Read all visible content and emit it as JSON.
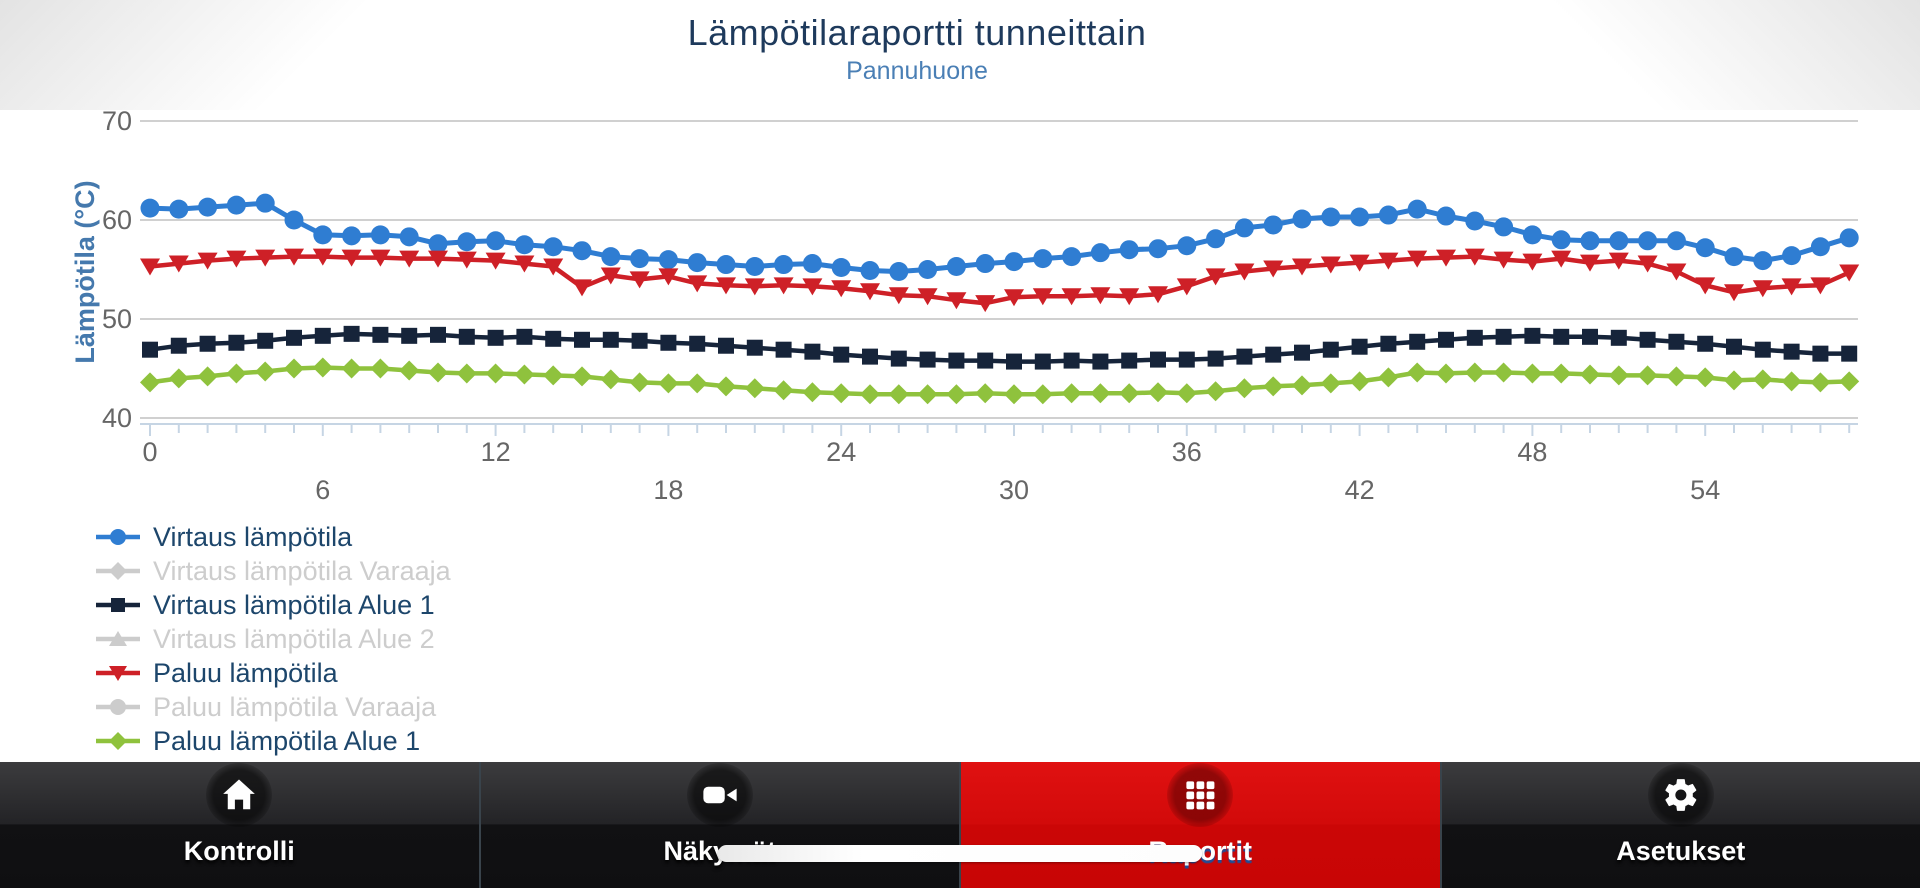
{
  "header": {
    "title": "Lämpötilaraportti tunneittain",
    "subtitle": "Pannuhuone"
  },
  "chart_data": {
    "type": "line",
    "title": "Lämpötilaraportti tunneittain",
    "subtitle": "Pannuhuone",
    "xlabel": "",
    "ylabel": "Lämpötila (°C)",
    "ylim": [
      40,
      70
    ],
    "y_ticks": [
      70,
      60,
      50,
      40
    ],
    "x_tick_labels": [
      0,
      6,
      12,
      18,
      24,
      30,
      36,
      42,
      48,
      54
    ],
    "x_range": [
      0,
      59
    ],
    "x_step_hours": 1,
    "grid": "horizontal",
    "legend_position": "bottom-left",
    "series": [
      {
        "name": "Virtaus lämpötila",
        "color": "#2f7dd2",
        "marker": "circle",
        "visible": true,
        "values": [
          61.2,
          61.1,
          61.3,
          61.5,
          61.7,
          60.0,
          58.5,
          58.4,
          58.5,
          58.3,
          57.6,
          57.8,
          57.9,
          57.5,
          57.3,
          56.9,
          56.3,
          56.1,
          56.0,
          55.7,
          55.5,
          55.3,
          55.5,
          55.6,
          55.2,
          54.9,
          54.8,
          55.0,
          55.3,
          55.6,
          55.8,
          56.1,
          56.3,
          56.7,
          57.0,
          57.1,
          57.4,
          58.1,
          59.2,
          59.5,
          60.1,
          60.3,
          60.3,
          60.5,
          61.1,
          60.4,
          59.9,
          59.3,
          58.5,
          58.0,
          57.9,
          57.9,
          57.9,
          57.9,
          57.2,
          56.3,
          55.9,
          56.4,
          57.3,
          58.2
        ]
      },
      {
        "name": "Virtaus lämpötila Varaaja",
        "color": "#cccccc",
        "marker": "diamond",
        "visible": false,
        "values": []
      },
      {
        "name": "Virtaus lämpötila Alue 1",
        "color": "#16243a",
        "marker": "square",
        "visible": true,
        "values": [
          46.9,
          47.3,
          47.5,
          47.6,
          47.8,
          48.1,
          48.3,
          48.5,
          48.4,
          48.3,
          48.4,
          48.2,
          48.1,
          48.2,
          48.0,
          47.9,
          47.9,
          47.8,
          47.6,
          47.5,
          47.3,
          47.1,
          46.9,
          46.7,
          46.4,
          46.2,
          46.0,
          45.9,
          45.8,
          45.8,
          45.7,
          45.7,
          45.8,
          45.7,
          45.8,
          45.9,
          45.9,
          46.0,
          46.2,
          46.4,
          46.6,
          46.9,
          47.2,
          47.5,
          47.7,
          47.9,
          48.1,
          48.2,
          48.3,
          48.2,
          48.2,
          48.1,
          47.9,
          47.7,
          47.5,
          47.2,
          46.9,
          46.7,
          46.5,
          46.5
        ]
      },
      {
        "name": "Virtaus lämpötila Alue 2",
        "color": "#cccccc",
        "marker": "triangle-up",
        "visible": false,
        "values": []
      },
      {
        "name": "Paluu lämpötila",
        "color": "#ce2027",
        "marker": "triangle-down",
        "visible": true,
        "values": [
          55.3,
          55.6,
          55.9,
          56.1,
          56.2,
          56.3,
          56.3,
          56.2,
          56.2,
          56.1,
          56.1,
          56.0,
          55.9,
          55.6,
          55.3,
          53.2,
          54.4,
          54.0,
          54.3,
          53.6,
          53.4,
          53.3,
          53.4,
          53.3,
          53.1,
          52.8,
          52.4,
          52.3,
          51.9,
          51.6,
          52.2,
          52.3,
          52.3,
          52.4,
          52.3,
          52.5,
          53.3,
          54.3,
          54.8,
          55.1,
          55.3,
          55.5,
          55.7,
          55.9,
          56.1,
          56.2,
          56.3,
          56.0,
          55.8,
          56.1,
          55.7,
          55.9,
          55.6,
          54.8,
          53.4,
          52.7,
          53.1,
          53.3,
          53.4,
          54.7
        ]
      },
      {
        "name": "Paluu lämpötila Varaaja",
        "color": "#cccccc",
        "marker": "circle",
        "visible": false,
        "values": []
      },
      {
        "name": "Paluu lämpötila Alue 1",
        "color": "#8fc23d",
        "marker": "diamond",
        "visible": true,
        "values": [
          43.6,
          44.0,
          44.2,
          44.5,
          44.7,
          45.0,
          45.1,
          45.0,
          45.0,
          44.8,
          44.6,
          44.5,
          44.5,
          44.4,
          44.3,
          44.2,
          43.9,
          43.6,
          43.5,
          43.5,
          43.2,
          43.0,
          42.8,
          42.6,
          42.5,
          42.4,
          42.4,
          42.4,
          42.4,
          42.5,
          42.4,
          42.4,
          42.5,
          42.5,
          42.5,
          42.6,
          42.5,
          42.7,
          43.0,
          43.2,
          43.3,
          43.5,
          43.7,
          44.1,
          44.6,
          44.5,
          44.6,
          44.6,
          44.5,
          44.5,
          44.4,
          44.3,
          44.3,
          44.2,
          44.1,
          43.8,
          43.9,
          43.7,
          43.6,
          43.7
        ]
      }
    ]
  },
  "nav": {
    "active_color": "#d20a0a",
    "tabs": [
      {
        "label": "Kontrolli",
        "icon": "home",
        "active": false
      },
      {
        "label": "Näkymät",
        "icon": "video-camera",
        "active": false
      },
      {
        "label": "Raportit",
        "icon": "grid",
        "active": true
      },
      {
        "label": "Asetukset",
        "icon": "gear",
        "active": false
      }
    ]
  },
  "system": {
    "home_indicator": true
  }
}
